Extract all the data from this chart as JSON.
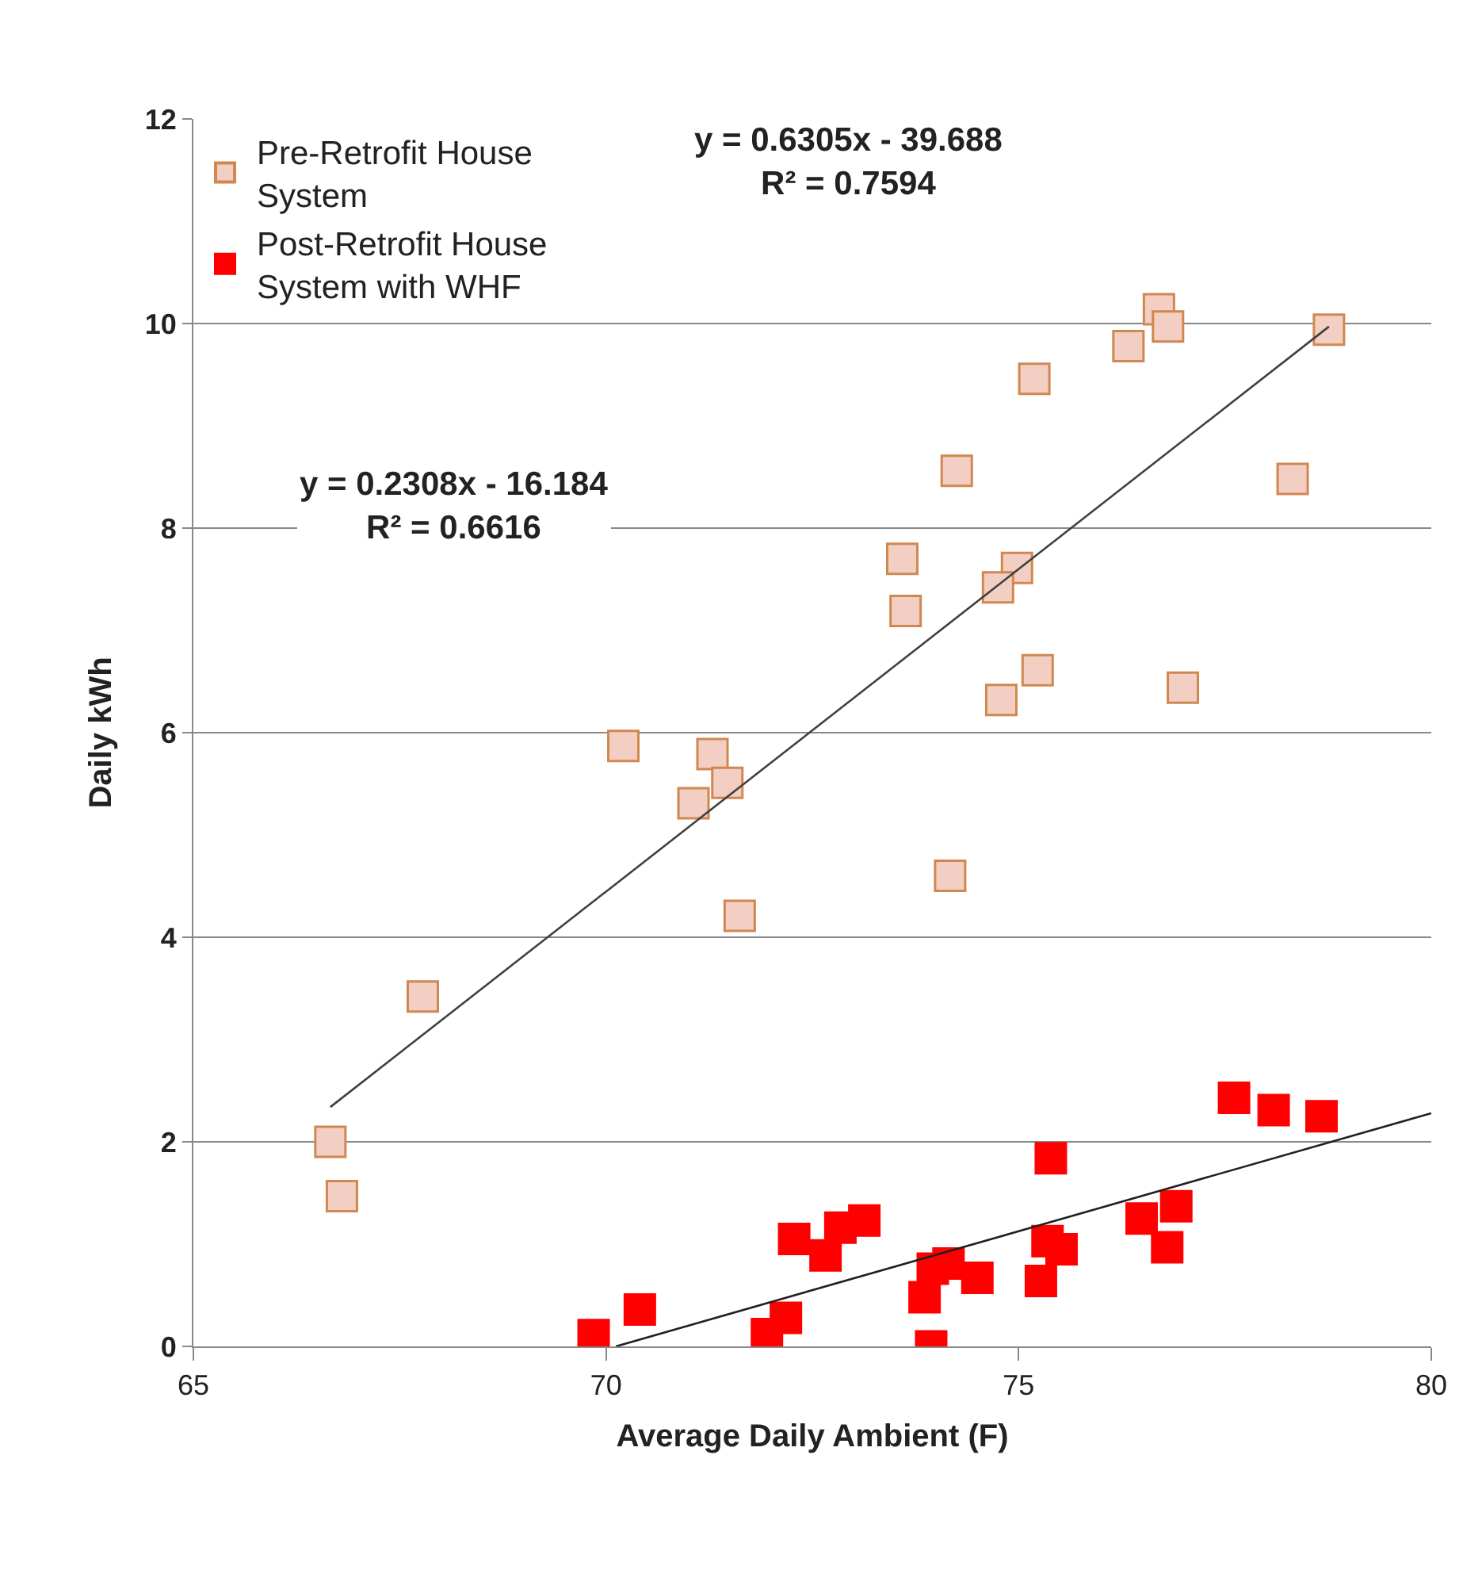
{
  "chart_data": {
    "type": "scatter",
    "xlabel": "Average Daily Ambient (F)",
    "ylabel": "Daily kWh",
    "xlim": [
      65,
      80
    ],
    "xticks": [
      65,
      70,
      75,
      80
    ],
    "ylim": [
      0,
      12
    ],
    "yticks": [
      0,
      2,
      4,
      6,
      8,
      10,
      12
    ],
    "grid": "y",
    "legend": "top left",
    "series": [
      {
        "name": "Pre-Retrofit House System",
        "color": "#f2cfc2",
        "marker": "square",
        "x": [
          66.66,
          66.8,
          67.78,
          70.21,
          71.29,
          71.47,
          71.06,
          71.62,
          76.7,
          76.81,
          76.33,
          78.76,
          75.19,
          74.25,
          78.32,
          73.59,
          74.98,
          74.75,
          73.63,
          75.23,
          74.79,
          76.99,
          74.17
        ],
        "values": [
          2.0,
          1.47,
          3.42,
          5.87,
          5.79,
          5.51,
          5.31,
          4.21,
          10.14,
          9.97,
          9.78,
          9.94,
          9.46,
          8.56,
          8.48,
          7.7,
          7.61,
          7.42,
          7.19,
          6.61,
          6.32,
          6.44,
          4.6
        ]
      },
      {
        "name": "Post-Retrofit House System with WHF",
        "color": "#ff0000",
        "marker": "square",
        "x": [
          69.85,
          70.41,
          71.95,
          72.18,
          72.28,
          72.66,
          72.84,
          73.13,
          73.86,
          73.96,
          74.15,
          74.5,
          73.94,
          75.27,
          75.35,
          75.52,
          75.39,
          76.49,
          76.91,
          76.8,
          77.61,
          78.09,
          78.67
        ],
        "values": [
          0.11,
          0.36,
          0.12,
          0.28,
          1.05,
          0.89,
          1.16,
          1.23,
          0.48,
          0.76,
          0.81,
          0.67,
          0.0,
          0.64,
          1.03,
          0.95,
          1.84,
          1.25,
          1.37,
          0.97,
          2.43,
          2.31,
          2.25
        ]
      },
      {
        "type": "line",
        "marker": "none",
        "color": "#404040",
        "x": [
          66.66,
          78.76
        ],
        "values": [
          2.34,
          9.97
        ]
      },
      {
        "type": "line",
        "marker": "none",
        "color": "#202020",
        "x": [
          70.12,
          80
        ],
        "values": [
          0.0,
          2.28
        ]
      }
    ],
    "annotations": [
      "y = 0.6305x - 39.688\nR² = 0.7594",
      "y = 0.2308x - 16.184\nR² = 0.6616"
    ]
  }
}
